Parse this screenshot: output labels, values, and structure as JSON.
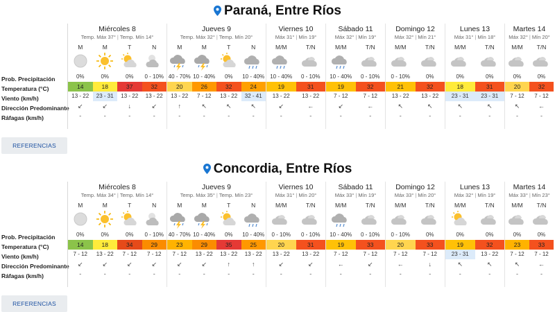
{
  "row_labels": [
    "Prob. Precipitación",
    "Temperatura (°C)",
    "Viento (km/h)",
    "Dirección Predominante",
    "Ráfagas (km/h)"
  ],
  "references_label": "REFERENCIAS",
  "colors": {
    "t14": "#8bc34a",
    "t18": "#ffeb3b",
    "t20": "#ffd54f",
    "t21": "#ffc107",
    "t23": "#ffb300",
    "t24": "#ffa000",
    "t25": "#ff9800",
    "t26": "#ff9800",
    "t29": "#fb8c00",
    "t31": "#f4511e",
    "t32": "#f4511e",
    "t33": "#f4511e",
    "t34": "#e64a19",
    "t35": "#e53935",
    "t37": "#e53935",
    "accent": "#1976d2",
    "wind_highlight": "#dcebfa"
  },
  "locations": [
    {
      "name": "Paraná, Entre Ríos",
      "days": [
        {
          "name": "Miércoles 8",
          "tmax": "Temp. Máx 37°",
          "tmin": "Temp. Mín 14°",
          "periods": [
            {
              "p": "M",
              "icon": "moon-icon",
              "prob": "0%",
              "temp": "14",
              "wind": "13 - 22",
              "hl": false,
              "dir": "↙",
              "raf": "-"
            },
            {
              "p": "M",
              "icon": "sun-icon",
              "prob": "0%",
              "temp": "18",
              "wind": "23 - 31",
              "hl": true,
              "dir": "↙",
              "raf": "-"
            },
            {
              "p": "T",
              "icon": "sun-cloud-icon",
              "prob": "0%",
              "temp": "37",
              "wind": "13 - 22",
              "hl": false,
              "dir": "↓",
              "raf": "-"
            },
            {
              "p": "N",
              "icon": "cloud-night-icon",
              "prob": "0 - 10%",
              "temp": "32",
              "wind": "13 - 22",
              "hl": false,
              "dir": "↙",
              "raf": "-"
            }
          ]
        },
        {
          "name": "Jueves 9",
          "tmax": "Temp. Máx 32°",
          "tmin": "Temp. Mín 20°",
          "periods": [
            {
              "p": "M",
              "icon": "storm-icon",
              "prob": "40 - 70%",
              "temp": "20",
              "wind": "13 - 22",
              "hl": false,
              "dir": "↑",
              "raf": "-"
            },
            {
              "p": "M",
              "icon": "storm-icon",
              "prob": "10 - 40%",
              "temp": "26",
              "wind": "7 - 12",
              "hl": false,
              "dir": "↖",
              "raf": "-"
            },
            {
              "p": "T",
              "icon": "sun-cloud-icon",
              "prob": "0%",
              "temp": "32",
              "wind": "13 - 22",
              "hl": false,
              "dir": "↖",
              "raf": "-"
            },
            {
              "p": "N",
              "icon": "rain-cloud-icon",
              "prob": "10 - 40%",
              "temp": "24",
              "wind": "32 - 41",
              "hl": true,
              "dir": "↖",
              "raf": "-"
            }
          ]
        },
        {
          "name": "Viernes 10",
          "tmax": "Máx 31°",
          "tmin": "Mín 19°",
          "periods": [
            {
              "p": "M/M",
              "icon": "rain-cloud-icon",
              "prob": "10 - 40%",
              "temp": "19",
              "wind": "13 - 22",
              "hl": false,
              "dir": "↙",
              "raf": "-"
            },
            {
              "p": "T/N",
              "icon": "cloud-icon",
              "prob": "0 - 10%",
              "temp": "31",
              "wind": "13 - 22",
              "hl": false,
              "dir": "←",
              "raf": "-"
            }
          ]
        },
        {
          "name": "Sábado 11",
          "tmax": "Máx 32°",
          "tmin": "Mín 19°",
          "periods": [
            {
              "p": "M/M",
              "icon": "rain-cloud-icon",
              "prob": "10 - 40%",
              "temp": "19",
              "wind": "7 - 12",
              "hl": false,
              "dir": "↙",
              "raf": "-"
            },
            {
              "p": "T/N",
              "icon": "cloud-icon",
              "prob": "0 - 10%",
              "temp": "32",
              "wind": "7 - 12",
              "hl": false,
              "dir": "←",
              "raf": "-"
            }
          ]
        },
        {
          "name": "Domingo 12",
          "tmax": "Máx 32°",
          "tmin": "Mín 21°",
          "periods": [
            {
              "p": "M/M",
              "icon": "cloud-icon",
              "prob": "0 - 10%",
              "temp": "21",
              "wind": "13 - 22",
              "hl": false,
              "dir": "↖",
              "raf": "-"
            },
            {
              "p": "T/N",
              "icon": "cloud-icon",
              "prob": "0%",
              "temp": "32",
              "wind": "13 - 22",
              "hl": false,
              "dir": "↖",
              "raf": "-"
            }
          ]
        },
        {
          "name": "Lunes 13",
          "tmax": "Máx 31°",
          "tmin": "Mín 18°",
          "periods": [
            {
              "p": "M/M",
              "icon": "cloud-icon",
              "prob": "0%",
              "temp": "18",
              "wind": "23 - 31",
              "hl": true,
              "dir": "↖",
              "raf": "-"
            },
            {
              "p": "T/N",
              "icon": "cloud-icon",
              "prob": "0%",
              "temp": "31",
              "wind": "23 - 31",
              "hl": true,
              "dir": "↖",
              "raf": "-"
            }
          ]
        },
        {
          "name": "Martes 14",
          "tmax": "Máx 32°",
          "tmin": "Mín 20°",
          "periods": [
            {
              "p": "M/M",
              "icon": "cloud-icon",
              "prob": "0%",
              "temp": "20",
              "wind": "7 - 12",
              "hl": false,
              "dir": "↖",
              "raf": "-"
            },
            {
              "p": "T/N",
              "icon": "cloud-icon",
              "prob": "0%",
              "temp": "32",
              "wind": "7 - 12",
              "hl": false,
              "dir": "←",
              "raf": "-"
            }
          ]
        }
      ]
    },
    {
      "name": "Concordia, Entre Ríos",
      "days": [
        {
          "name": "Miércoles 8",
          "tmax": "Temp. Máx 34°",
          "tmin": "Temp. Mín 14°",
          "periods": [
            {
              "p": "M",
              "icon": "moon-icon",
              "prob": "0%",
              "temp": "14",
              "wind": "7 - 12",
              "hl": false,
              "dir": "↙",
              "raf": "-"
            },
            {
              "p": "M",
              "icon": "sun-icon",
              "prob": "0%",
              "temp": "18",
              "wind": "13 - 22",
              "hl": false,
              "dir": "↙",
              "raf": "-"
            },
            {
              "p": "T",
              "icon": "sun-cloud-icon",
              "prob": "0%",
              "temp": "34",
              "wind": "7 - 12",
              "hl": false,
              "dir": "↙",
              "raf": "-"
            },
            {
              "p": "N",
              "icon": "cloud-night-icon",
              "prob": "0 - 10%",
              "temp": "29",
              "wind": "7 - 12",
              "hl": false,
              "dir": "↙",
              "raf": "-"
            }
          ]
        },
        {
          "name": "Jueves 9",
          "tmax": "Temp. Máx 35°",
          "tmin": "Temp. Mín 23°",
          "periods": [
            {
              "p": "M",
              "icon": "storm-icon",
              "prob": "40 - 70%",
              "temp": "23",
              "wind": "7 - 12",
              "hl": false,
              "dir": "↙",
              "raf": "-"
            },
            {
              "p": "M",
              "icon": "storm-icon",
              "prob": "10 - 40%",
              "temp": "29",
              "wind": "13 - 22",
              "hl": false,
              "dir": "↙",
              "raf": "-"
            },
            {
              "p": "T",
              "icon": "sun-cloud-icon",
              "prob": "0%",
              "temp": "35",
              "wind": "13 - 22",
              "hl": false,
              "dir": "↑",
              "raf": "-"
            },
            {
              "p": "N",
              "icon": "rain-cloud-icon",
              "prob": "10 - 40%",
              "temp": "25",
              "wind": "13 - 22",
              "hl": false,
              "dir": "↑",
              "raf": "-"
            }
          ]
        },
        {
          "name": "Viernes 10",
          "tmax": "Máx 31°",
          "tmin": "Mín 20°",
          "periods": [
            {
              "p": "M/M",
              "icon": "cloud-icon",
              "prob": "0 - 10%",
              "temp": "20",
              "wind": "13 - 22",
              "hl": false,
              "dir": "↙",
              "raf": "-"
            },
            {
              "p": "T/N",
              "icon": "cloud-icon",
              "prob": "0 - 10%",
              "temp": "31",
              "wind": "13 - 22",
              "hl": false,
              "dir": "↙",
              "raf": "-"
            }
          ]
        },
        {
          "name": "Sábado 11",
          "tmax": "Máx 33°",
          "tmin": "Mín 19°",
          "periods": [
            {
              "p": "M/M",
              "icon": "rain-cloud-icon",
              "prob": "10 - 40%",
              "temp": "19",
              "wind": "7 - 12",
              "hl": false,
              "dir": "←",
              "raf": "-"
            },
            {
              "p": "T/N",
              "icon": "cloud-icon",
              "prob": "0 - 10%",
              "temp": "33",
              "wind": "7 - 12",
              "hl": false,
              "dir": "↙",
              "raf": "-"
            }
          ]
        },
        {
          "name": "Domingo 12",
          "tmax": "Máx 33°",
          "tmin": "Mín 20°",
          "periods": [
            {
              "p": "M/M",
              "icon": "cloud-icon",
              "prob": "0 - 10%",
              "temp": "20",
              "wind": "7 - 12",
              "hl": false,
              "dir": "←",
              "raf": "-"
            },
            {
              "p": "T/N",
              "icon": "cloud-icon",
              "prob": "0%",
              "temp": "33",
              "wind": "7 - 12",
              "hl": false,
              "dir": "↓",
              "raf": "-"
            }
          ]
        },
        {
          "name": "Lunes 13",
          "tmax": "Máx 32°",
          "tmin": "Mín 19°",
          "periods": [
            {
              "p": "M/M",
              "icon": "sun-cloud-icon",
              "prob": "0%",
              "temp": "19",
              "wind": "23 - 31",
              "hl": true,
              "dir": "↖",
              "raf": "-"
            },
            {
              "p": "T/N",
              "icon": "cloud-icon",
              "prob": "0%",
              "temp": "32",
              "wind": "13 - 22",
              "hl": false,
              "dir": "↖",
              "raf": "-"
            }
          ]
        },
        {
          "name": "Martes 14",
          "tmax": "Máx 33°",
          "tmin": "Mín 23°",
          "periods": [
            {
              "p": "M/M",
              "icon": "cloud-icon",
              "prob": "0%",
              "temp": "23",
              "wind": "7 - 12",
              "hl": false,
              "dir": "↖",
              "raf": "-"
            },
            {
              "p": "T/N",
              "icon": "cloud-icon",
              "prob": "0%",
              "temp": "33",
              "wind": "7 - 12",
              "hl": false,
              "dir": "←",
              "raf": "-"
            }
          ]
        }
      ]
    }
  ]
}
